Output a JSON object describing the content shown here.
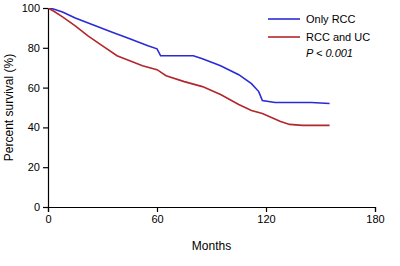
{
  "chart_data": {
    "type": "line",
    "x_label": "Months",
    "y_label": "Percent survival (%)",
    "annotation": "P < 0.001",
    "xlim": [
      0,
      180
    ],
    "xticks": [
      0,
      60,
      120,
      180
    ],
    "ylim": [
      0,
      100
    ],
    "yticks": [
      0,
      20,
      40,
      60,
      80,
      100
    ],
    "grid": false,
    "legend": "upper right",
    "series": [
      {
        "name": "Only RCC",
        "color": "#2b2bd6",
        "x": [
          0,
          3,
          8,
          15,
          25,
          35,
          45,
          55,
          60,
          62,
          70,
          80,
          85,
          95,
          105,
          112,
          116,
          118,
          125,
          135,
          145,
          155
        ],
        "values": [
          100,
          99.5,
          98,
          95,
          91.5,
          88,
          84.5,
          81,
          79.5,
          76,
          76,
          76,
          74.5,
          71,
          66.5,
          62,
          58,
          53.5,
          52.5,
          52.5,
          52.5,
          52
        ]
      },
      {
        "name": "RCC and UC",
        "color": "#b3262b",
        "x": [
          0,
          3,
          8,
          15,
          22,
          30,
          38,
          45,
          52,
          60,
          65,
          75,
          85,
          95,
          105,
          112,
          118,
          123,
          128,
          133,
          140,
          155
        ],
        "values": [
          100,
          98.5,
          95.5,
          91,
          86,
          81,
          76,
          73.5,
          71,
          69,
          66,
          63,
          60.5,
          56.5,
          51.5,
          48.5,
          47,
          45,
          43,
          41.5,
          41,
          41
        ]
      }
    ]
  }
}
